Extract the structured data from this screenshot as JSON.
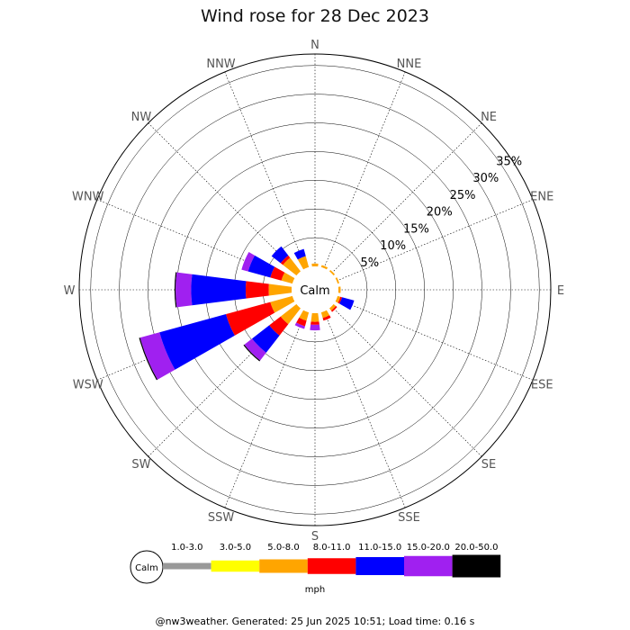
{
  "title": "Wind rose for 28 Dec 2023",
  "footer": "@nw3weather. Generated: 25 Jun 2025 10:51; Load time: 0.16 s",
  "calm_label": "Calm",
  "units": "mph",
  "chart_data": {
    "type": "wind-rose",
    "title": "Wind rose for 28 Dec 2023",
    "directions": [
      "N",
      "NNE",
      "NE",
      "ENE",
      "E",
      "ESE",
      "SE",
      "SSE",
      "S",
      "SSW",
      "SW",
      "WSW",
      "W",
      "WNW",
      "NW",
      "NNW"
    ],
    "radial_ticks": [
      "5%",
      "10%",
      "15%",
      "20%",
      "25%",
      "30%",
      "35%"
    ],
    "radial_max": 37,
    "speed_bins": [
      {
        "label": "1.0-3.0",
        "color": "#999999"
      },
      {
        "label": "3.0-5.0",
        "color": "#ffff00"
      },
      {
        "label": "5.0-8.0",
        "color": "#ffa500"
      },
      {
        "label": "8.0-11.0",
        "color": "#ff0000"
      },
      {
        "label": "11.0-15.0",
        "color": "#0000ff"
      },
      {
        "label": "15.0-20.0",
        "color": "#a020f0"
      },
      {
        "label": "20.0-50.0",
        "color": "#000000"
      }
    ],
    "bars": [
      {
        "dir": "N",
        "cumulative": [
          0,
          0,
          0.5,
          0.5,
          0.5,
          0.5,
          0.5
        ]
      },
      {
        "dir": "NNE",
        "cumulative": [
          0,
          0,
          0.4,
          0.4,
          0.4,
          0.4,
          0.4
        ]
      },
      {
        "dir": "NE",
        "cumulative": [
          0,
          0,
          0.3,
          0.3,
          0.3,
          0.3,
          0.3
        ]
      },
      {
        "dir": "ENE",
        "cumulative": [
          0,
          0,
          0.3,
          0.3,
          0.3,
          0.3,
          0.3
        ]
      },
      {
        "dir": "E",
        "cumulative": [
          0,
          0,
          0.4,
          0.4,
          0.4,
          0.4,
          0.4
        ]
      },
      {
        "dir": "ESE",
        "cumulative": [
          0,
          0,
          0.5,
          0.8,
          3.0,
          3.0,
          3.0
        ]
      },
      {
        "dir": "SE",
        "cumulative": [
          0,
          0,
          0.5,
          0.8,
          0.8,
          0.8,
          0.8
        ]
      },
      {
        "dir": "SSE",
        "cumulative": [
          0,
          0,
          1.0,
          1.5,
          1.5,
          1.5,
          1.5
        ]
      },
      {
        "dir": "S",
        "cumulative": [
          0,
          0,
          1.5,
          2.0,
          2.0,
          3.0,
          3.0
        ]
      },
      {
        "dir": "SSW",
        "cumulative": [
          0,
          0,
          1.5,
          2.5,
          2.5,
          3.0,
          3.0
        ]
      },
      {
        "dir": "SW",
        "cumulative": [
          0,
          0,
          3.5,
          6.0,
          9.8,
          11.5,
          11.7
        ]
      },
      {
        "dir": "WSW",
        "cumulative": [
          0,
          0,
          4.0,
          12.0,
          24.0,
          27.5,
          27.7
        ]
      },
      {
        "dir": "W",
        "cumulative": [
          0,
          0,
          4.0,
          8.0,
          17.5,
          20.2,
          20.4
        ]
      },
      {
        "dir": "WNW",
        "cumulative": [
          0,
          0,
          2.0,
          4.0,
          8.0,
          9.2,
          9.2
        ]
      },
      {
        "dir": "NW",
        "cumulative": [
          0,
          0,
          3.0,
          3.5,
          5.5,
          5.5,
          5.5
        ]
      },
      {
        "dir": "NNW",
        "cumulative": [
          0,
          0,
          2.0,
          2.0,
          3.3,
          3.3,
          3.3
        ]
      }
    ]
  }
}
